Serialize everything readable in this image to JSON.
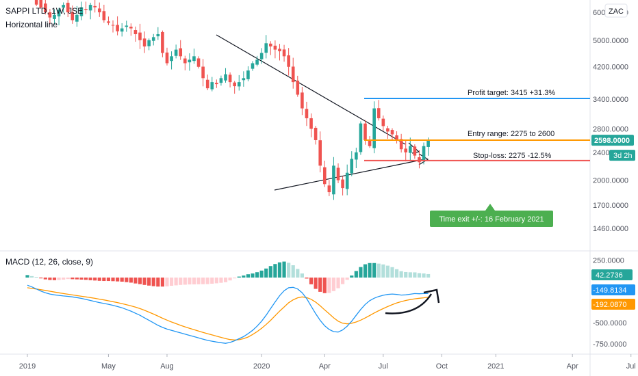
{
  "header": {
    "title": "SAPPI LTD, 1W, JSE",
    "tool": "Horizontal line",
    "currency": "ZAC"
  },
  "macd": {
    "title": "MACD (12, 26, close, 9)"
  },
  "colors": {
    "up": "#26a69a",
    "down": "#ef5350",
    "up_hist_light": "#b2dfdb",
    "down_hist_light": "#ffcdd2",
    "macd_line": "#2196f3",
    "signal_line": "#ff9800",
    "profit_line": "#2196f3",
    "entry_line": "#ff9800",
    "stop_line": "#ef5350",
    "time_exit": "#4caf50",
    "price_tag": "#26a69a"
  },
  "chart_data": [
    {
      "type": "candlestick",
      "title": "SAPPI LTD, 1W, JSE",
      "y_scale": "log",
      "ylim": [
        1300,
        6500
      ],
      "y_ticks": [
        "1460.0000",
        "1700.0000",
        "2000.0000",
        "2400.0000",
        "2800.0000",
        "3400.0000",
        "4200.0000",
        "5000.0000",
        "6000.0000"
      ],
      "y_tick_values": [
        1460,
        1700,
        2000,
        2400,
        2800,
        3400,
        4200,
        5000,
        6000
      ],
      "x_ticks": [
        "2019",
        "May",
        "Aug",
        "2020",
        "Apr",
        "Jul",
        "Oct",
        "2021",
        "Apr",
        "Jul"
      ],
      "x_tick_weeks": [
        0,
        18,
        31,
        52,
        66,
        79,
        92,
        104,
        121,
        134
      ],
      "weeks_count": 90,
      "closes": [
        7000,
        6800,
        6600,
        6300,
        6000,
        5800,
        5900,
        6100,
        6300,
        6000,
        5700,
        5900,
        6200,
        6100,
        6300,
        6200,
        6000,
        5700,
        5600,
        5500,
        5300,
        5400,
        5500,
        5400,
        5200,
        5000,
        4800,
        5000,
        5100,
        5200,
        4600,
        4300,
        4500,
        4700,
        4500,
        4300,
        4400,
        4500,
        4200,
        3900,
        3650,
        3800,
        3750,
        3900,
        4000,
        3800,
        3700,
        3800,
        3900,
        4100,
        4300,
        4400,
        4600,
        4900,
        4800,
        4700,
        4650,
        4500,
        4200,
        3800,
        3500,
        3200,
        3000,
        2800,
        2600,
        2200,
        1950,
        1850,
        2200,
        2000,
        1900,
        2100,
        2300,
        2400,
        2900,
        2600,
        2500,
        3200,
        3000,
        2850,
        2750,
        2700,
        2600,
        2450,
        2400,
        2500,
        2350,
        2250,
        2500,
        2598
      ],
      "macd": [
        -50,
        -70,
        -95,
        -120,
        -140,
        -155,
        -165,
        -172,
        -178,
        -183,
        -190,
        -198,
        -208,
        -220,
        -232,
        -245,
        -258,
        -268,
        -278,
        -290,
        -305,
        -320,
        -340,
        -360,
        -385,
        -410,
        -440,
        -470,
        -500,
        -530,
        -555,
        -575,
        -590,
        -605,
        -620,
        -635,
        -650,
        -665,
        -680,
        -695,
        -710,
        -720,
        -730,
        -738,
        -745,
        -735,
        -715,
        -690,
        -665,
        -630,
        -590,
        -540,
        -480,
        -410,
        -330,
        -250,
        -175,
        -115,
        -80,
        -75,
        -95,
        -140,
        -210,
        -300,
        -390,
        -470,
        -535,
        -580,
        -605,
        -610,
        -585,
        -540,
        -480,
        -410,
        -340,
        -280,
        -235,
        -205,
        -185,
        -170,
        -160,
        -155,
        -160,
        -168,
        -165,
        -158,
        -150,
        -152,
        -150,
        -149.8134
      ],
      "signal": [
        -80,
        -88,
        -96,
        -104,
        -112,
        -122,
        -132,
        -141,
        -150,
        -158,
        -166,
        -174,
        -182,
        -190,
        -198,
        -207,
        -217,
        -226,
        -236,
        -247,
        -258,
        -270,
        -283,
        -297,
        -312,
        -330,
        -350,
        -372,
        -395,
        -420,
        -445,
        -468,
        -490,
        -510,
        -530,
        -548,
        -566,
        -582,
        -598,
        -614,
        -630,
        -645,
        -660,
        -674,
        -688,
        -700,
        -705,
        -702,
        -690,
        -670,
        -640,
        -605,
        -565,
        -520,
        -470,
        -415,
        -360,
        -310,
        -260,
        -225,
        -200,
        -190,
        -198,
        -218,
        -252,
        -296,
        -345,
        -392,
        -440,
        -480,
        -505,
        -512,
        -505,
        -490,
        -468,
        -442,
        -412,
        -382,
        -355,
        -330,
        -305,
        -282,
        -262,
        -246,
        -232,
        -222,
        -213,
        -206,
        -200,
        -192.087
      ],
      "hist": [
        30,
        18,
        6,
        -10,
        -22,
        -30,
        -32,
        -30,
        -25,
        -18,
        -20,
        -22,
        -25,
        -28,
        -33,
        -36,
        -40,
        -42,
        -42,
        -44,
        -47,
        -50,
        -56,
        -62,
        -72,
        -80,
        -90,
        -98,
        -105,
        -110,
        -110,
        -107,
        -100,
        -95,
        -90,
        -87,
        -84,
        -83,
        -82,
        -81,
        -80,
        -75,
        -70,
        -64,
        -57,
        -35,
        -10,
        12,
        25,
        40,
        50,
        65,
        85,
        110,
        140,
        165,
        185,
        195,
        180,
        150,
        105,
        50,
        -12,
        -82,
        -138,
        -174,
        -190,
        -188,
        -165,
        -130,
        -80,
        -28,
        25,
        80,
        128,
        162,
        177,
        177,
        170,
        160,
        145,
        127,
        102,
        78,
        67,
        64,
        63,
        54,
        50,
        42.2736
      ],
      "macd_ylim": [
        -850,
        320
      ],
      "macd_y_ticks": [
        "250.0000",
        "-500.0000",
        "-750.0000"
      ],
      "macd_y_tick_values": [
        250,
        -500,
        -750
      ],
      "macd_series": [
        {
          "name": "MACD"
        },
        {
          "name": "Signal"
        },
        {
          "name": "Histogram"
        }
      ],
      "annotations": {
        "profit_target": {
          "label": "Profit target: 3415 +31.3%",
          "value": 3415
        },
        "entry_range": {
          "label": "Entry range: 2275 to 2600",
          "value": 2600
        },
        "stop_loss": {
          "label": "Stop-loss: 2275 -12.5%",
          "value": 2275
        },
        "time_exit": {
          "label": "Time exit +/-: 16 February 2021"
        }
      },
      "price_tags": {
        "last_price": "2598.0000",
        "countdown": "3d 2h",
        "hist_value": "42.2736",
        "macd_value": "-149.8134",
        "signal_value": "-192.0870"
      }
    }
  ]
}
